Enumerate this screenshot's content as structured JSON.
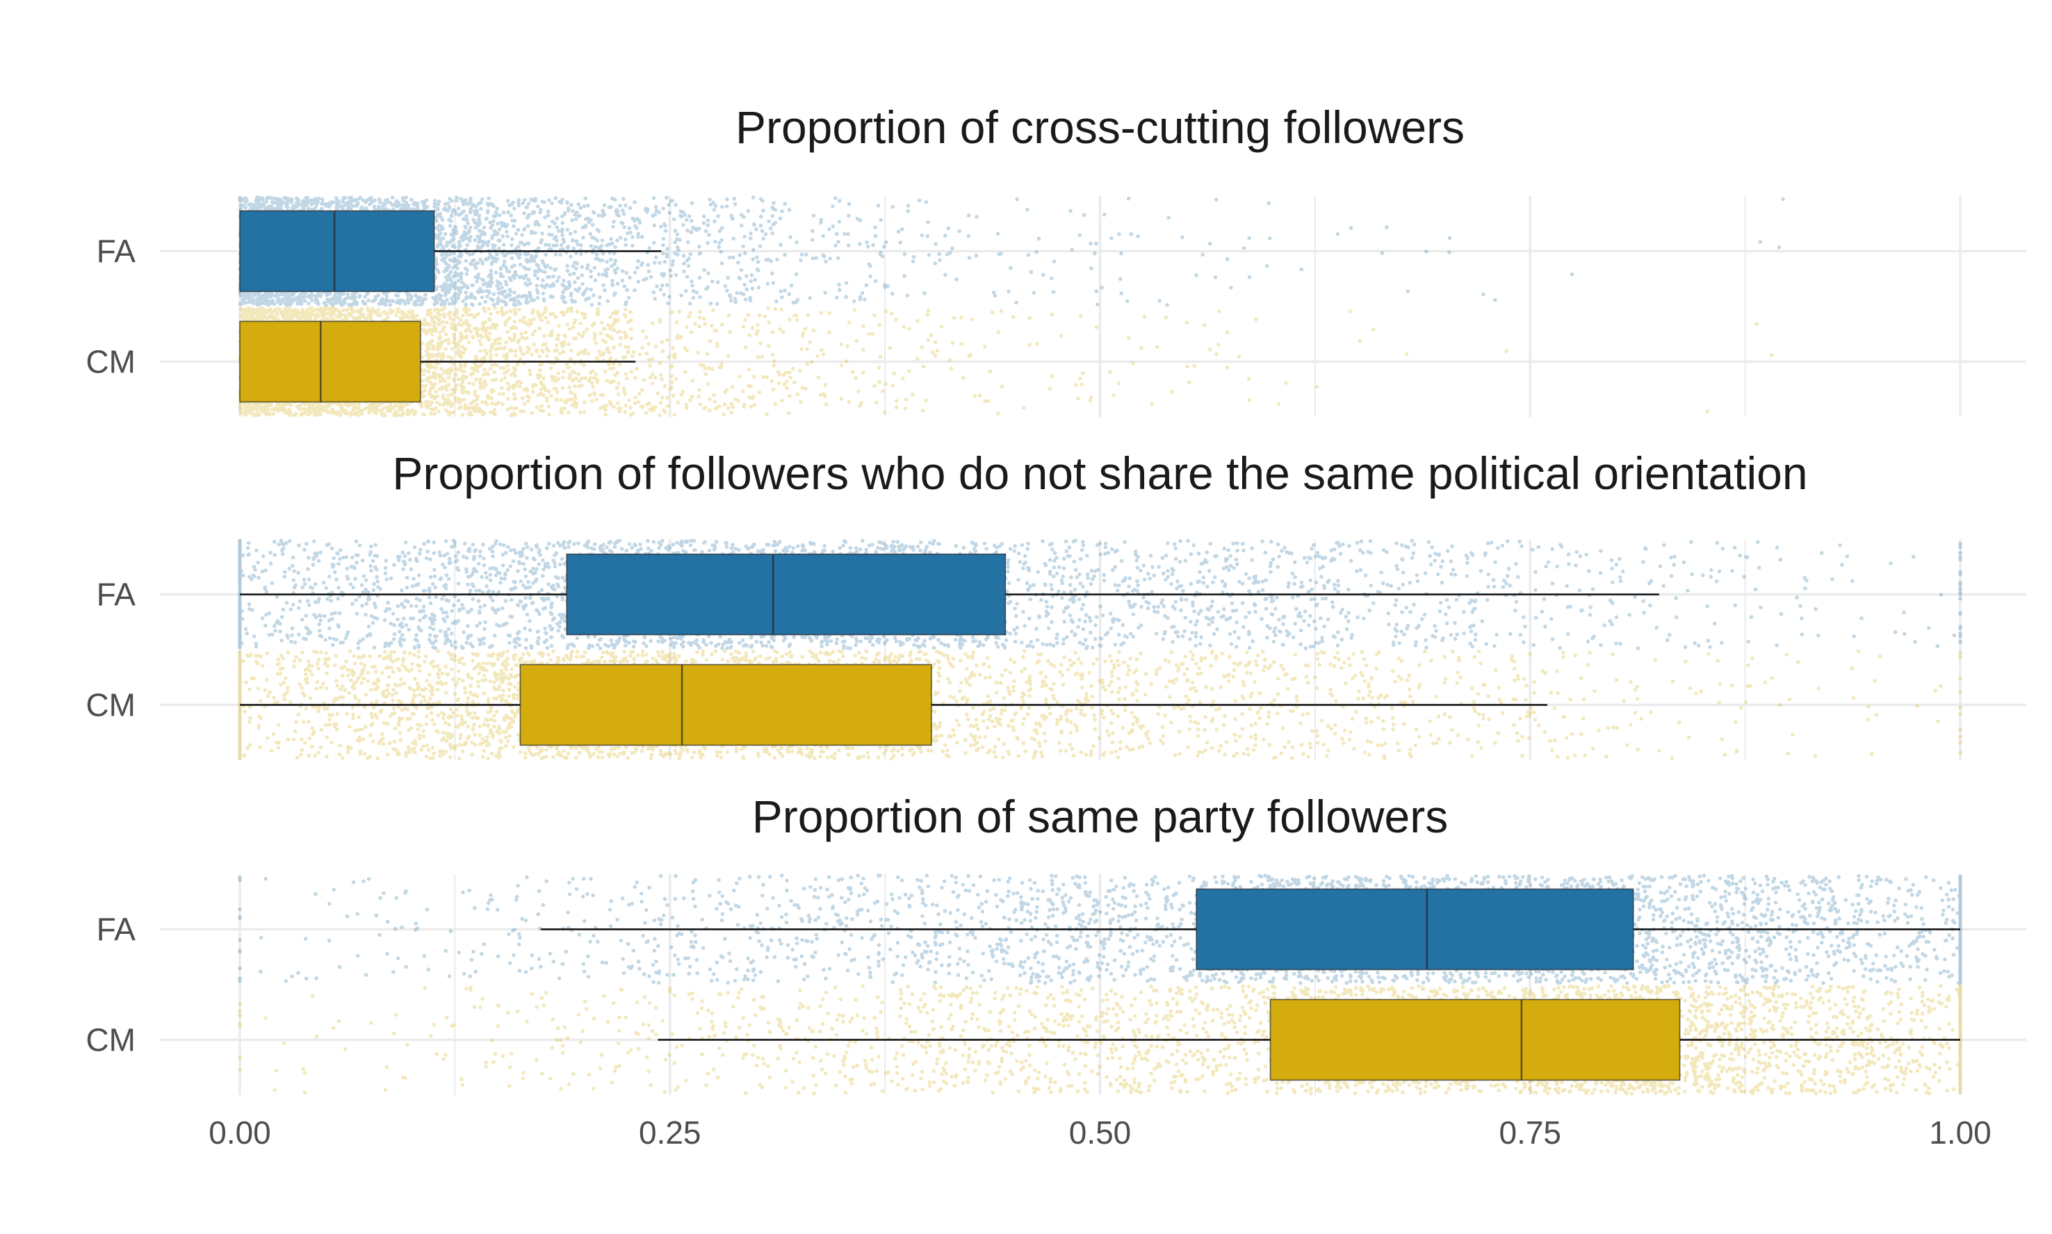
{
  "chart_data": {
    "type": "boxplot-jitter",
    "orientation": "horizontal",
    "x_axis": {
      "range": [
        0,
        1
      ],
      "ticks": [
        "0.00",
        "0.25",
        "0.50",
        "0.75",
        "1.00"
      ]
    },
    "groups": [
      "FA",
      "CM"
    ],
    "colors": {
      "FA": "#2471a3",
      "CM": "#d4ac0d"
    },
    "grid": true,
    "legend": "none",
    "panels": [
      {
        "title": "Proportion of cross-cutting followers",
        "boxes": [
          {
            "group": "FA",
            "whisker_low": 0.0,
            "q1": 0.0,
            "median": 0.055,
            "q3": 0.113,
            "whisker_high": 0.245
          },
          {
            "group": "CM",
            "whisker_low": 0.0,
            "q1": 0.0,
            "median": 0.047,
            "q3": 0.105,
            "whisker_high": 0.23
          }
        ]
      },
      {
        "title": "Proportion of followers who do not share the same political orientation",
        "boxes": [
          {
            "group": "FA",
            "whisker_low": 0.0,
            "q1": 0.19,
            "median": 0.31,
            "q3": 0.445,
            "whisker_high": 0.825
          },
          {
            "group": "CM",
            "whisker_low": 0.0,
            "q1": 0.163,
            "median": 0.257,
            "q3": 0.402,
            "whisker_high": 0.76
          }
        ]
      },
      {
        "title": "Proportion of same party followers",
        "boxes": [
          {
            "group": "FA",
            "whisker_low": 0.175,
            "q1": 0.556,
            "median": 0.69,
            "q3": 0.81,
            "whisker_high": 1.0
          },
          {
            "group": "CM",
            "whisker_low": 0.243,
            "q1": 0.599,
            "median": 0.745,
            "q3": 0.837,
            "whisker_high": 1.0
          }
        ]
      }
    ]
  }
}
